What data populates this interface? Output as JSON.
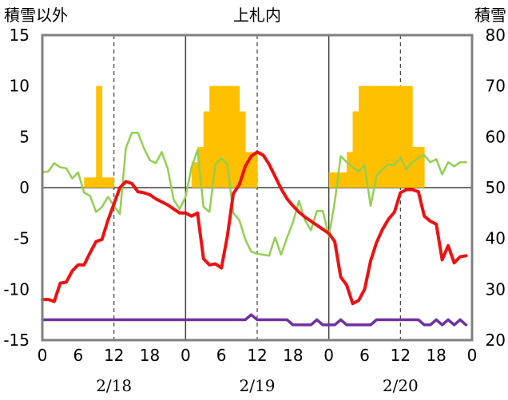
{
  "chart_data": {
    "type": "line",
    "title": "上札内",
    "y_left_label": "積雪以外",
    "y_right_label": "積雪",
    "ylim_left": [
      -15,
      15
    ],
    "ylim_right": [
      20,
      80
    ],
    "y_left_ticks": [
      "15",
      "10",
      "5",
      "0",
      "-5",
      "-10",
      "-15"
    ],
    "y_right_ticks": [
      "80",
      "70",
      "60",
      "50",
      "40",
      "30",
      "20"
    ],
    "x_range_hours": [
      0,
      72
    ],
    "x_tick_labels": [
      "0",
      "6",
      "12",
      "18",
      "0",
      "6",
      "12",
      "18",
      "0",
      "6",
      "12",
      "18",
      "0"
    ],
    "day_labels": [
      "2/18",
      "2/19",
      "2/20"
    ],
    "colors": {
      "temperature": "#ee1111",
      "green_series": "#92d050",
      "purple_series": "#7030a0",
      "snow_depth": "#ffc000",
      "frame": "#808080",
      "gridline": "#404040"
    },
    "series": [
      {
        "key": "snow_depth",
        "type": "bar",
        "axis": "right",
        "x": [
          7,
          8,
          9,
          10,
          11,
          24,
          25,
          26,
          27,
          28,
          29,
          30,
          31,
          32,
          33,
          34,
          35,
          48,
          49,
          50,
          51,
          52,
          53,
          54,
          55,
          56,
          57,
          58,
          59,
          60,
          61,
          62,
          63
        ],
        "values": [
          52,
          52,
          70,
          52,
          52,
          50,
          55,
          58,
          65,
          70,
          70,
          70,
          70,
          70,
          65,
          57,
          57,
          53,
          53,
          53,
          57,
          65,
          70,
          70,
          70,
          70,
          70,
          70,
          70,
          70,
          70,
          58,
          58
        ]
      },
      {
        "key": "temperature",
        "type": "line",
        "axis": "left",
        "x": [
          0,
          1,
          2,
          3,
          4,
          5,
          6,
          7,
          8,
          9,
          10,
          11,
          12,
          13,
          14,
          15,
          16,
          17,
          18,
          19,
          20,
          21,
          22,
          23,
          24,
          25,
          26,
          27,
          28,
          29,
          30,
          31,
          32,
          33,
          34,
          35,
          36,
          37,
          38,
          39,
          40,
          41,
          42,
          43,
          44,
          45,
          46,
          47,
          48,
          49,
          50,
          51,
          52,
          53,
          54,
          55,
          56,
          57,
          58,
          59,
          60,
          61,
          62,
          63,
          64,
          65,
          66,
          67,
          68,
          69,
          70,
          71
        ],
        "values": [
          -11,
          -11,
          -11.2,
          -9.4,
          -9.3,
          -8.2,
          -7.6,
          -7.6,
          -6.4,
          -5.3,
          -5.1,
          -3.2,
          -1.6,
          0,
          0.6,
          0.4,
          -0.4,
          -0.5,
          -0.7,
          -1.1,
          -1.4,
          -1.7,
          -2.1,
          -2.5,
          -2.5,
          -2.8,
          -2.5,
          -7,
          -7.6,
          -7.5,
          -7.9,
          -4.8,
          -0.6,
          0.3,
          2.1,
          3.1,
          3.5,
          3.2,
          2.3,
          1.1,
          -0.1,
          -1.1,
          -1.8,
          -2.4,
          -2.9,
          -3.3,
          -3.7,
          -4.1,
          -4.5,
          -5.3,
          -8.8,
          -9.6,
          -11.4,
          -11.1,
          -10,
          -7.2,
          -5.4,
          -4.1,
          -3.1,
          -2.4,
          -0.5,
          -0.2,
          -0.2,
          -0.4,
          -2.8,
          -3.3,
          -3.6,
          -7.1,
          -5.7,
          -7.4,
          -6.8,
          -6.7
        ]
      },
      {
        "key": "green_series",
        "type": "line",
        "axis": "left",
        "x": [
          0,
          1,
          2,
          3,
          4,
          5,
          6,
          7,
          8,
          9,
          10,
          11,
          12,
          13,
          14,
          15,
          16,
          17,
          18,
          19,
          20,
          21,
          22,
          23,
          24,
          25,
          26,
          27,
          28,
          29,
          30,
          31,
          32,
          33,
          34,
          35,
          36,
          37,
          38,
          39,
          40,
          41,
          42,
          43,
          44,
          45,
          46,
          47,
          48,
          49,
          50,
          51,
          52,
          53,
          54,
          55,
          56,
          57,
          58,
          59,
          60,
          61,
          62,
          63,
          64,
          65,
          66,
          67,
          68,
          69,
          70,
          71
        ],
        "values": [
          1.5,
          1.6,
          2.4,
          2,
          1.9,
          0.9,
          1.5,
          -0.5,
          -0.8,
          -2.4,
          -1.9,
          -0.9,
          -1.8,
          -2.6,
          3.9,
          5.4,
          5.4,
          3.9,
          2.7,
          2.4,
          3.5,
          1.9,
          -1.2,
          -2.1,
          -0.9,
          2,
          3.7,
          -1.9,
          -2.4,
          2.3,
          2.9,
          2.3,
          -2.5,
          -3.2,
          -5.1,
          -6.3,
          -6.5,
          -6.6,
          -6.7,
          -4.9,
          -6.6,
          -4.9,
          -3.4,
          -1.3,
          -3.2,
          -4.2,
          -2.3,
          -2.3,
          -4.8,
          -1.4,
          3.1,
          2.5,
          2,
          1.6,
          2.2,
          -1.8,
          1.2,
          1.8,
          2.3,
          2.2,
          3,
          1.8,
          2.5,
          2.9,
          3.2,
          2.5,
          2.8,
          1.3,
          2.5,
          2.1,
          2.5,
          2.5
        ]
      },
      {
        "key": "purple_series",
        "type": "line",
        "axis": "left",
        "x": [
          0,
          34,
          35,
          36,
          40,
          41,
          42,
          43,
          44,
          45,
          46,
          47,
          48,
          49,
          50,
          51,
          52,
          53,
          54,
          55,
          56,
          57,
          58,
          59,
          60,
          61,
          62,
          63,
          64,
          65,
          66,
          67,
          68,
          69,
          70,
          71
        ],
        "values": [
          -13,
          -13,
          -12.5,
          -13,
          -13,
          -13,
          -13.5,
          -13.5,
          -13.5,
          -13.5,
          -13,
          -13.5,
          -13.5,
          -13.5,
          -13,
          -13.5,
          -13.5,
          -13.5,
          -13.5,
          -13.5,
          -13,
          -13,
          -13,
          -13,
          -13,
          -13,
          -13,
          -13,
          -13.5,
          -13.5,
          -13,
          -13.5,
          -13,
          -13.5,
          -13,
          -13.5
        ]
      }
    ]
  }
}
